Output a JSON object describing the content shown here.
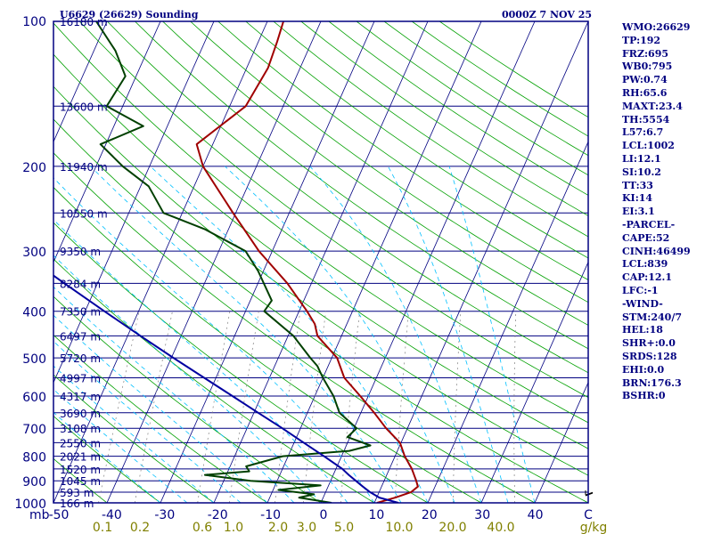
{
  "header": {
    "station": "U6629 (26629) Sounding",
    "datetime": "0000Z  7 NOV 25"
  },
  "indices": [
    "WMO:26629",
    "TP:192",
    "FRZ:695",
    "WB0:795",
    "PW:0.74",
    "RH:65.6",
    "MAXT:23.4",
    "TH:5554",
    "L57:6.7",
    "LCL:1002",
    "LI:12.1",
    "SI:10.2",
    "TT:33",
    "KI:14",
    "EI:3.1",
    "-PARCEL-",
    "CAPE:52",
    "CINH:46499",
    "LCL:839",
    "CAP:12.1",
    "LFC:-1",
    "-WIND-",
    "STM:240/7",
    "HEL:18",
    "SHR+:0.0",
    "SRDS:128",
    "EHI:0.0",
    "BRN:176.3",
    "BSHR:0"
  ],
  "chart_data": {
    "type": "line",
    "title": "U6629 (26629) Sounding",
    "diagram": "skew-T log-p",
    "y_axis": {
      "label": "mb",
      "scale": "log",
      "range": [
        1000,
        100
      ],
      "ticks": [
        100,
        200,
        300,
        400,
        500,
        600,
        700,
        800,
        900,
        1000
      ]
    },
    "x_axis": {
      "label": "C",
      "range": [
        -50,
        50
      ],
      "ticks": [
        "-50",
        "-40",
        "-30",
        "-20",
        "-10",
        "0",
        "10",
        "20",
        "30",
        "40",
        "C"
      ]
    },
    "mixing_ratio_labels": [
      "0.1",
      "0.2",
      "0.6",
      "1.0",
      "2.0",
      "3.0",
      "5.0",
      "10.0",
      "20.0",
      "40.0",
      "g/kg"
    ],
    "heights": [
      {
        "p": 100,
        "label": "16180 m"
      },
      {
        "p": 150,
        "label": "13600 m"
      },
      {
        "p": 200,
        "label": "11940 m"
      },
      {
        "p": 250,
        "label": "10550 m"
      },
      {
        "p": 300,
        "label": "9350 m"
      },
      {
        "p": 350,
        "label": "8284 m"
      },
      {
        "p": 400,
        "label": "7350 m"
      },
      {
        "p": 450,
        "label": "6497 m"
      },
      {
        "p": 500,
        "label": "5720 m"
      },
      {
        "p": 550,
        "label": "4997 m"
      },
      {
        "p": 600,
        "label": "4317 m"
      },
      {
        "p": 650,
        "label": "3690 m"
      },
      {
        "p": 700,
        "label": "3108 m"
      },
      {
        "p": 750,
        "label": "2550 m"
      },
      {
        "p": 800,
        "label": "2021 m"
      },
      {
        "p": 850,
        "label": "1520 m"
      },
      {
        "p": 900,
        "label": "1045 m"
      },
      {
        "p": 950,
        "label": "593 m"
      },
      {
        "p": 1000,
        "label": "166 m"
      }
    ],
    "series": [
      {
        "name": "temperature",
        "color": "#a00000",
        "points": [
          [
            1000,
            10.5
          ],
          [
            975,
            13.5
          ],
          [
            950,
            16.0
          ],
          [
            925,
            16.8
          ],
          [
            900,
            16.0
          ],
          [
            850,
            14.2
          ],
          [
            800,
            11.8
          ],
          [
            750,
            9.8
          ],
          [
            700,
            6.0
          ],
          [
            650,
            2.5
          ],
          [
            600,
            -1.5
          ],
          [
            550,
            -6.0
          ],
          [
            500,
            -9.0
          ],
          [
            450,
            -14.5
          ],
          [
            425,
            -16.0
          ],
          [
            400,
            -18.5
          ],
          [
            350,
            -24.5
          ],
          [
            300,
            -32.5
          ],
          [
            250,
            -40.5
          ],
          [
            200,
            -50.0
          ],
          [
            180,
            -53.0
          ],
          [
            150,
            -47.0
          ],
          [
            125,
            -46.0
          ],
          [
            110,
            -46.5
          ],
          [
            100,
            -47.0
          ]
        ]
      },
      {
        "name": "dewpoint",
        "color": "#004000",
        "points": [
          [
            1000,
            2.0
          ],
          [
            975,
            -4.5
          ],
          [
            960,
            -2.0
          ],
          [
            940,
            -9.0
          ],
          [
            920,
            -1.5
          ],
          [
            900,
            -15.0
          ],
          [
            875,
            -24.0
          ],
          [
            860,
            -16.0
          ],
          [
            840,
            -17.0
          ],
          [
            800,
            -11.0
          ],
          [
            780,
            1.0
          ],
          [
            760,
            4.5
          ],
          [
            730,
            -0.5
          ],
          [
            700,
            0.5
          ],
          [
            650,
            -4.0
          ],
          [
            600,
            -6.5
          ],
          [
            550,
            -10.0
          ],
          [
            520,
            -12.0
          ],
          [
            500,
            -14.0
          ],
          [
            450,
            -19.0
          ],
          [
            400,
            -26.5
          ],
          [
            380,
            -26.0
          ],
          [
            330,
            -31.0
          ],
          [
            300,
            -35.0
          ],
          [
            270,
            -44.5
          ],
          [
            250,
            -53.5
          ],
          [
            220,
            -58.5
          ],
          [
            200,
            -65.0
          ],
          [
            180,
            -71.0
          ],
          [
            165,
            -64.5
          ],
          [
            150,
            -73.0
          ],
          [
            130,
            -72.0
          ],
          [
            115,
            -76.0
          ],
          [
            100,
            -82.0
          ]
        ]
      },
      {
        "name": "parcel",
        "color": "#0000a0",
        "points": [
          [
            1000,
            14.5
          ],
          [
            975,
            10.5
          ],
          [
            950,
            8.3
          ],
          [
            925,
            6.5
          ],
          [
            900,
            4.7
          ],
          [
            875,
            2.9
          ],
          [
            850,
            1.2
          ],
          [
            800,
            -3.3
          ],
          [
            750,
            -8.2
          ],
          [
            700,
            -13.4
          ],
          [
            650,
            -19.2
          ],
          [
            600,
            -25.4
          ],
          [
            550,
            -32.2
          ],
          [
            500,
            -39.6
          ],
          [
            450,
            -47.6
          ],
          [
            400,
            -56.4
          ],
          [
            350,
            -66.2
          ],
          [
            300,
            -77.4
          ],
          [
            250,
            -90.2
          ],
          [
            200,
            -105.5
          ],
          [
            150,
            -124.6
          ],
          [
            120,
            -138.6
          ],
          [
            110,
            -144.0
          ]
        ]
      }
    ],
    "colors": {
      "isobar": "#000080",
      "isotherm": "#000080",
      "dry_adiabat": "#00a000",
      "moist_adiabat": "#00c0ff",
      "mixing_ratio": "#808080",
      "axis_text": "#000080",
      "mixing_label": "#808000"
    }
  }
}
